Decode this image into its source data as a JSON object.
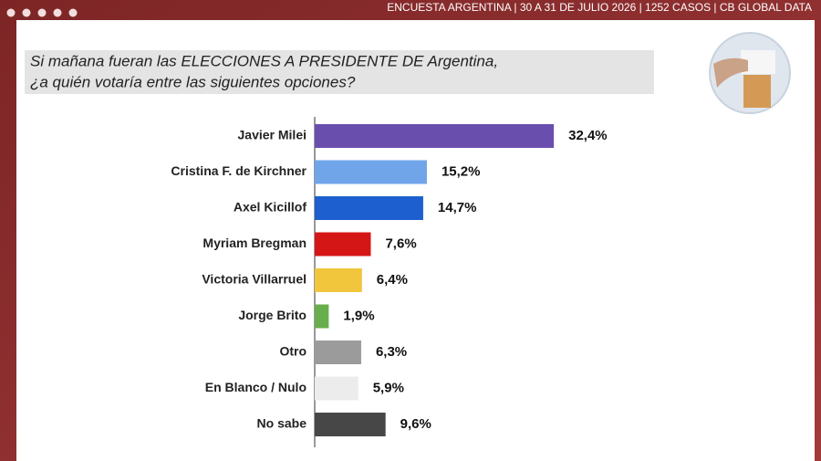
{
  "header": {
    "text": "ENCUESTA ARGENTINA | 30 A 31 DE JULIO 2026 | 1252 CASOS | CB GLOBAL DATA"
  },
  "chart_data": {
    "type": "barh",
    "title": [
      "Si mañana fueran las ELECCIONES A PRESIDENTE DE Argentina,",
      "¿a quién votaría entre las siguientes opciones?"
    ],
    "categories": [
      "Javier Milei",
      "Cristina F. de Kirchner",
      "Axel Kicillof",
      "Myriam Bregman",
      "Victoria Villarruel",
      "Jorge Brito",
      "Otro",
      "En Blanco / Nulo",
      "No sabe"
    ],
    "values": [
      32.4,
      15.2,
      14.7,
      7.6,
      6.4,
      1.9,
      6.3,
      5.9,
      9.6
    ],
    "value_labels": [
      "32,4%",
      "15,2%",
      "14,7%",
      "7,6%",
      "6,4%",
      "1,9%",
      "6,3%",
      "5,9%",
      "9,6%"
    ],
    "colors": [
      "#6a4eae",
      "#70a5ea",
      "#1e5fd0",
      "#d51616",
      "#f1c63c",
      "#69ae4c",
      "#9b9b9b",
      "#ececec",
      "#474747"
    ]
  }
}
